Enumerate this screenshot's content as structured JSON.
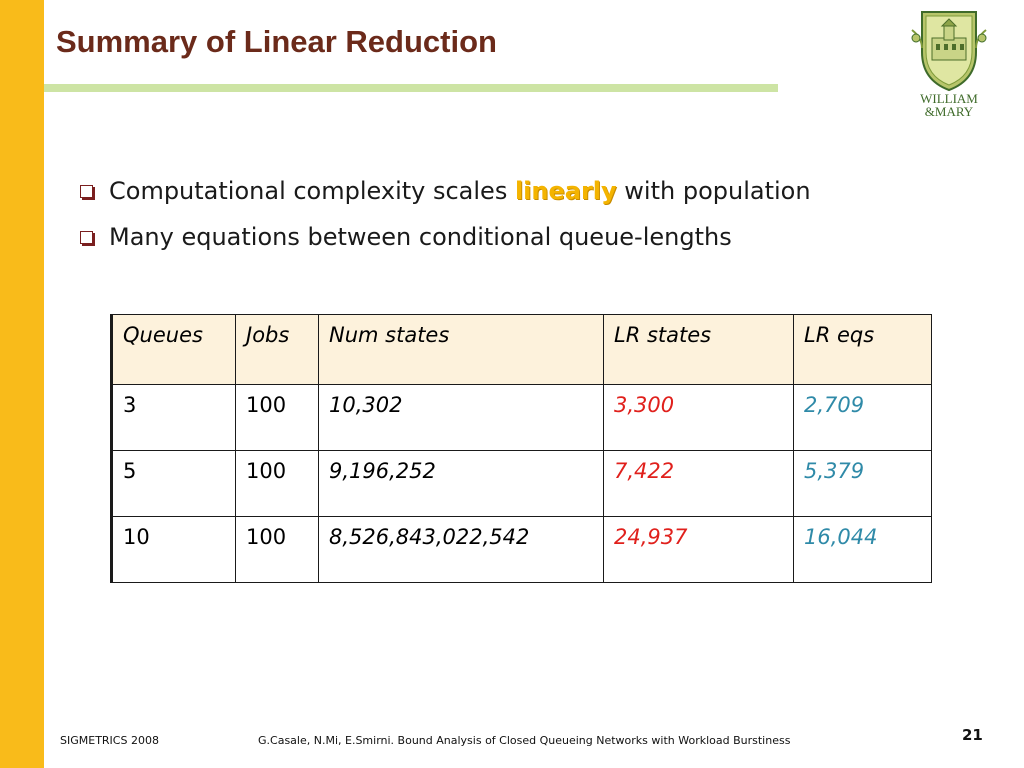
{
  "slide": {
    "title": "Summary of Linear Reduction",
    "logo": {
      "line1": "WILLIAM",
      "line2": "&MARY"
    },
    "bullets": [
      {
        "before": "Computational complexity scales ",
        "highlight": "linearly",
        "after": " with population"
      },
      {
        "text": "Many equations between conditional queue-lengths"
      }
    ],
    "table": {
      "headers": [
        "Queues",
        "Jobs",
        "Num states",
        "LR states",
        "LR eqs"
      ],
      "rows": [
        [
          "3",
          "100",
          "10,302",
          "3,300",
          "2,709"
        ],
        [
          "5",
          "100",
          "9,196,252",
          "7,422",
          "5,379"
        ],
        [
          "10",
          "100",
          "8,526,843,022,542",
          "24,937",
          "16,044"
        ]
      ]
    },
    "footer": {
      "left": "SIGMETRICS 2008",
      "center": "G.Casale, N.Mi, E.Smirni. Bound Analysis of Closed Queueing Networks with Workload Burstiness",
      "page": "21"
    }
  },
  "colors": {
    "left_bar": "#f9bb1a",
    "title": "#6b2a1a",
    "title_rule": "#cde4a4",
    "highlight": "#f4b400",
    "header_fill": "#fdf2dc",
    "red_values": "#e0201c",
    "teal_values": "#2f8aa8",
    "logo": "#3f6b2a"
  }
}
